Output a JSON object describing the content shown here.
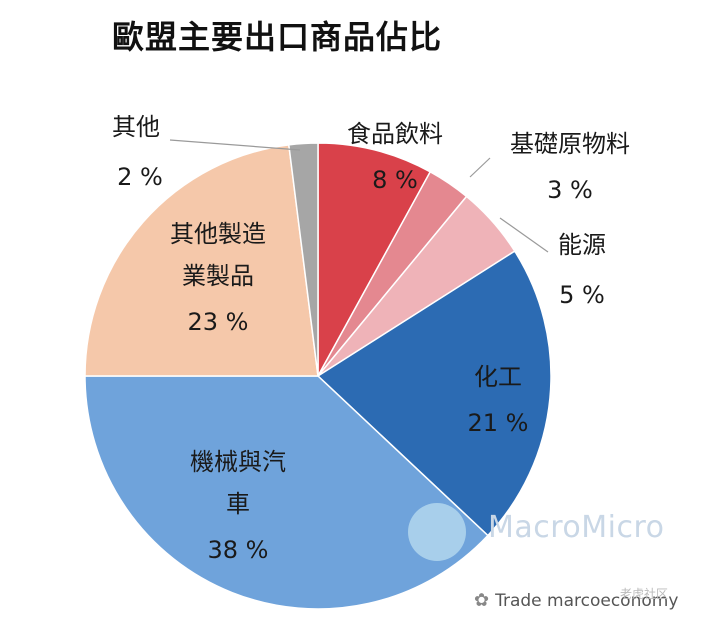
{
  "title": "歐盟主要出口商品佔比",
  "chart_data": {
    "type": "pie",
    "title": "歐盟主要出口商品佔比",
    "slices": [
      {
        "label": "食品飲料",
        "value": 8,
        "display": "8 %",
        "color": "#d9414a"
      },
      {
        "label": "基礎原物料",
        "value": 3,
        "display": "3 %",
        "color": "#e48890"
      },
      {
        "label": "能源",
        "value": 5,
        "display": "5 %",
        "color": "#efb3b8"
      },
      {
        "label": "化工",
        "value": 21,
        "display": "21 %",
        "color": "#2c6bb3"
      },
      {
        "label": "機械與汽車",
        "lines": [
          "機械與汽",
          "車"
        ],
        "value": 38,
        "display": "38 %",
        "color": "#6fa3db"
      },
      {
        "label": "其他製造業製品",
        "lines": [
          "其他製造",
          "業製品"
        ],
        "value": 23,
        "display": "23 %",
        "color": "#f5c8aa"
      },
      {
        "label": "其他",
        "value": 2,
        "display": "2 %",
        "color": "#a6a6a6"
      }
    ]
  },
  "watermark": {
    "brand": "MacroMicro"
  },
  "footer": {
    "source": "Trade marcoeconomy",
    "stamp": "老虎社区"
  }
}
